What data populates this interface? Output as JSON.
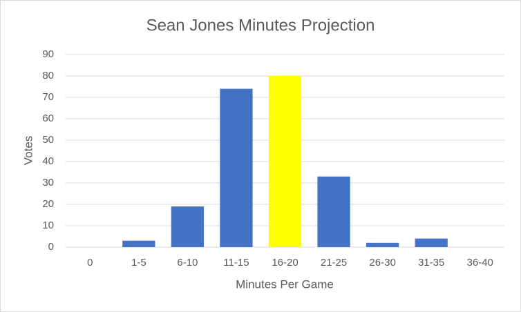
{
  "chart_data": {
    "type": "bar",
    "title": "Sean Jones Minutes Projection",
    "x_label": "Minutes Per Game",
    "y_label": "Votes",
    "categories": [
      "0",
      "1-5",
      "6-10",
      "11-15",
      "16-20",
      "21-25",
      "26-30",
      "31-35",
      "36-40"
    ],
    "values": [
      0,
      3,
      19,
      74,
      80,
      33,
      2,
      4,
      0
    ],
    "colors": [
      "#4472c4",
      "#4472c4",
      "#4472c4",
      "#4472c4",
      "#ffff00",
      "#4472c4",
      "#4472c4",
      "#4472c4",
      "#4472c4"
    ],
    "ylim": [
      0,
      90
    ],
    "yticks": [
      0,
      10,
      20,
      30,
      40,
      50,
      60,
      70,
      80,
      90
    ],
    "grid": true
  }
}
